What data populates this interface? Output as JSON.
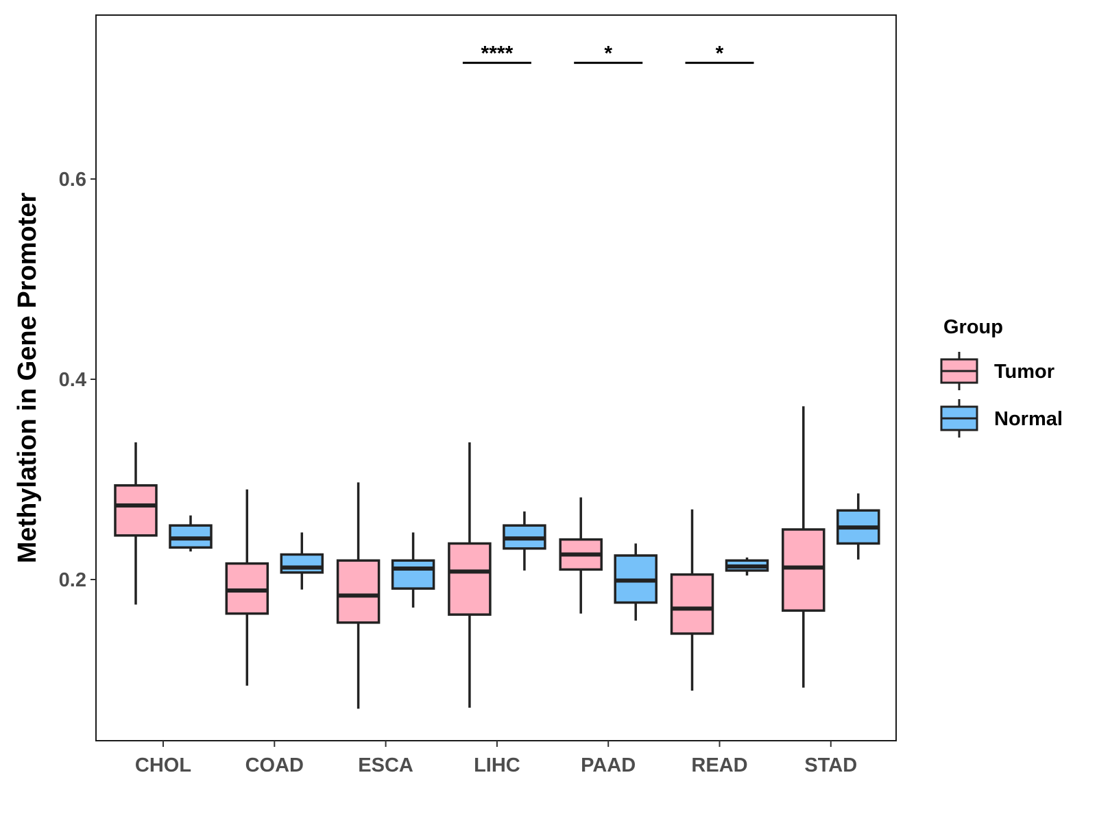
{
  "chart_data": {
    "type": "boxplot",
    "title": "",
    "xlabel": "",
    "ylabel": "Methylation in Gene Promoter",
    "ylim": [
      0.04,
      0.77
    ],
    "yticks": [
      0.2,
      0.4,
      0.6
    ],
    "ytick_labels": [
      "0.2",
      "0.4",
      "0.6"
    ],
    "grid": false,
    "categories": [
      "CHOL",
      "COAD",
      "ESCA",
      "LIHC",
      "PAAD",
      "READ",
      "STAD"
    ],
    "legend": {
      "title": "Group",
      "position": "right",
      "entries": [
        {
          "name": "Tumor",
          "color": "#FFB0C1"
        },
        {
          "name": "Normal",
          "color": "#76C1F9"
        }
      ]
    },
    "series": [
      {
        "name": "Tumor",
        "color": "#FFB0C1",
        "boxes": [
          {
            "category": "CHOL",
            "min": 0.175,
            "q1": 0.244,
            "median": 0.274,
            "q3": 0.294,
            "max": 0.337
          },
          {
            "category": "COAD",
            "min": 0.094,
            "q1": 0.166,
            "median": 0.189,
            "q3": 0.216,
            "max": 0.29
          },
          {
            "category": "ESCA",
            "min": 0.071,
            "q1": 0.157,
            "median": 0.184,
            "q3": 0.219,
            "max": 0.297
          },
          {
            "category": "LIHC",
            "min": 0.072,
            "q1": 0.165,
            "median": 0.208,
            "q3": 0.236,
            "max": 0.337
          },
          {
            "category": "PAAD",
            "min": 0.166,
            "q1": 0.21,
            "median": 0.225,
            "q3": 0.24,
            "max": 0.282
          },
          {
            "category": "READ",
            "min": 0.089,
            "q1": 0.146,
            "median": 0.171,
            "q3": 0.205,
            "max": 0.27
          },
          {
            "category": "STAD",
            "min": 0.092,
            "q1": 0.169,
            "median": 0.212,
            "q3": 0.25,
            "max": 0.373
          }
        ]
      },
      {
        "name": "Normal",
        "color": "#76C1F9",
        "boxes": [
          {
            "category": "CHOL",
            "min": 0.228,
            "q1": 0.232,
            "median": 0.241,
            "q3": 0.254,
            "max": 0.264
          },
          {
            "category": "COAD",
            "min": 0.19,
            "q1": 0.207,
            "median": 0.212,
            "q3": 0.225,
            "max": 0.247
          },
          {
            "category": "ESCA",
            "min": 0.172,
            "q1": 0.191,
            "median": 0.211,
            "q3": 0.219,
            "max": 0.247
          },
          {
            "category": "LIHC",
            "min": 0.209,
            "q1": 0.231,
            "median": 0.241,
            "q3": 0.254,
            "max": 0.268
          },
          {
            "category": "PAAD",
            "min": 0.159,
            "q1": 0.177,
            "median": 0.199,
            "q3": 0.224,
            "max": 0.236
          },
          {
            "category": "READ",
            "min": 0.204,
            "q1": 0.209,
            "median": 0.213,
            "q3": 0.219,
            "max": 0.222
          },
          {
            "category": "STAD",
            "min": 0.22,
            "q1": 0.236,
            "median": 0.252,
            "q3": 0.269,
            "max": 0.286
          }
        ]
      }
    ],
    "annotations": [
      {
        "category": "LIHC",
        "label": "****",
        "y": 0.716
      },
      {
        "category": "PAAD",
        "label": "*",
        "y": 0.716
      },
      {
        "category": "READ",
        "label": "*",
        "y": 0.716
      }
    ]
  }
}
